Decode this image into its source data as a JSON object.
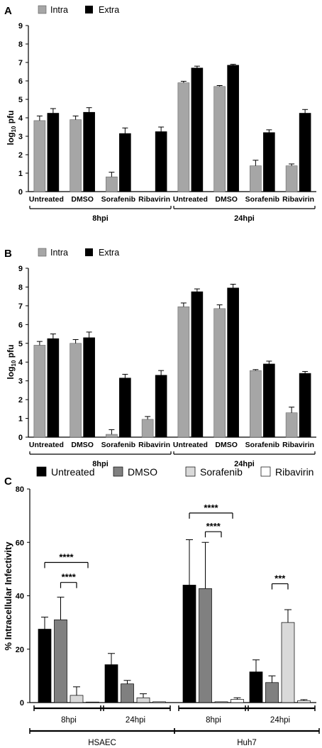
{
  "panel_labels": [
    "A",
    "B",
    "C"
  ],
  "colors": {
    "intra": "#a6a6a6",
    "extra": "#000000",
    "untreated": "#000000",
    "dmso": "#808080",
    "sorafenib": "#d9d9d9",
    "ribavirin": "#ffffff"
  },
  "chart_data": [
    {
      "panel": "A",
      "type": "bar",
      "ylabel_main": "log",
      "ylabel_sub": "10",
      "ylabel_rest": " pfu",
      "ylim": [
        0,
        9
      ],
      "yticks": [
        "0",
        "1",
        "2",
        "3",
        "4",
        "5",
        "6",
        "7",
        "8",
        "9"
      ],
      "categories": [
        "Untreated",
        "DMSO",
        "Sorafenib",
        "Ribavirin",
        "Untreated",
        "DMSO",
        "Sorafenib",
        "Ribavirin"
      ],
      "groups": [
        "8hpi",
        "24hpi"
      ],
      "series": [
        {
          "name": "Intra",
          "values": [
            3.85,
            3.9,
            0.8,
            0,
            5.9,
            5.7,
            1.4,
            1.4
          ],
          "errors": [
            0.25,
            0.2,
            0.25,
            0,
            0.08,
            0.05,
            0.3,
            0.1
          ]
        },
        {
          "name": "Extra",
          "values": [
            4.25,
            4.3,
            3.15,
            3.25,
            6.7,
            6.85,
            3.2,
            4.25
          ],
          "errors": [
            0.25,
            0.25,
            0.3,
            0.25,
            0.1,
            0.05,
            0.15,
            0.2
          ]
        }
      ]
    },
    {
      "panel": "B",
      "type": "bar",
      "ylabel_main": "log",
      "ylabel_sub": "10",
      "ylabel_rest": " pfu",
      "ylim": [
        0,
        9
      ],
      "yticks": [
        "0",
        "1",
        "2",
        "3",
        "4",
        "5",
        "6",
        "7",
        "8",
        "9"
      ],
      "categories": [
        "Untreated",
        "DMSO",
        "Sorafenib",
        "Ribavirin",
        "Untreated",
        "DMSO",
        "Sorafenib",
        "Ribavirin"
      ],
      "groups": [
        "8hpi",
        "24hpi"
      ],
      "series": [
        {
          "name": "Intra",
          "values": [
            4.9,
            5.0,
            0.15,
            0.95,
            6.95,
            6.85,
            3.55,
            1.3
          ],
          "errors": [
            0.2,
            0.2,
            0.25,
            0.15,
            0.2,
            0.2,
            0.05,
            0.3
          ]
        },
        {
          "name": "Extra",
          "values": [
            5.25,
            5.3,
            3.15,
            3.3,
            7.75,
            7.95,
            3.9,
            3.4
          ],
          "errors": [
            0.25,
            0.3,
            0.2,
            0.25,
            0.15,
            0.2,
            0.15,
            0.1
          ]
        }
      ]
    },
    {
      "panel": "C",
      "type": "bar",
      "ylabel": "% Intracellular Infectivity",
      "ylim": [
        0,
        80
      ],
      "yticks": [
        "0",
        "20",
        "40",
        "60",
        "80"
      ],
      "groups": [
        "8hpi",
        "24hpi",
        "8hpi",
        "24hpi"
      ],
      "cell_lines": [
        "HSAEC",
        "Huh7"
      ],
      "series": [
        {
          "name": "Untreated",
          "values": [
            27.5,
            14.2,
            44.0,
            11.5
          ],
          "errors": [
            4.5,
            4.2,
            17.0,
            4.5
          ]
        },
        {
          "name": "DMSO",
          "values": [
            31.0,
            7.0,
            42.7,
            7.5
          ],
          "errors": [
            8.5,
            1.3,
            17.3,
            2.5
          ]
        },
        {
          "name": "Sorafenib",
          "values": [
            2.7,
            1.8,
            0.3,
            30.0
          ],
          "errors": [
            3.2,
            1.5,
            0.0,
            4.8
          ]
        },
        {
          "name": "Ribavirin",
          "values": [
            0,
            0.3,
            1.2,
            0.7
          ],
          "errors": [
            0,
            0.0,
            0.6,
            0.4
          ]
        }
      ],
      "significance": [
        {
          "label": "****"
        },
        {
          "label": "****"
        },
        {
          "label": "****"
        },
        {
          "label": "****"
        },
        {
          "label": "***"
        }
      ]
    }
  ]
}
